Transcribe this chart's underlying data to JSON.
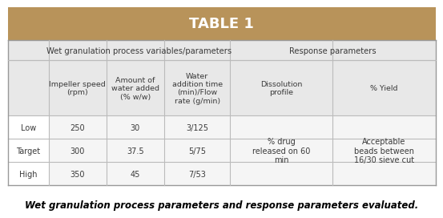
{
  "title": "TABLE 1",
  "title_bg_color": "#B8935A",
  "title_text_color": "#FFFFFF",
  "outer_bg_color": "#FFFFFF",
  "header1_text": "Wet granulation process variables/parameters",
  "header2_text": "Response parameters",
  "col_headers": [
    "Impeller speed\n(rpm)",
    "Amount of\nwater added\n(% w/w)",
    "Water\naddition time\n(min)/Flow\nrate (g/min)",
    "Dissolution\nprofile",
    "% Yield"
  ],
  "row_labels": [
    "Low",
    "Target",
    "High"
  ],
  "data_cols03": [
    "250",
    "300",
    "350"
  ],
  "data_cols13": [
    "30",
    "37.5",
    "45"
  ],
  "data_cols23": [
    "3/125",
    "5/75",
    "7/53"
  ],
  "data_col4": "% drug\nreleased on 60\nmin",
  "data_col5": "Acceptable\nbeads between\n16/30 sieve cut",
  "caption": "Wet granulation process parameters and response parameters evaluated.",
  "caption_color": "#000000",
  "grid_color": "#BBBBBB",
  "header_bg": "#E8E8E8",
  "data_bg": "#F5F5F5",
  "text_color": "#3A3A3A"
}
